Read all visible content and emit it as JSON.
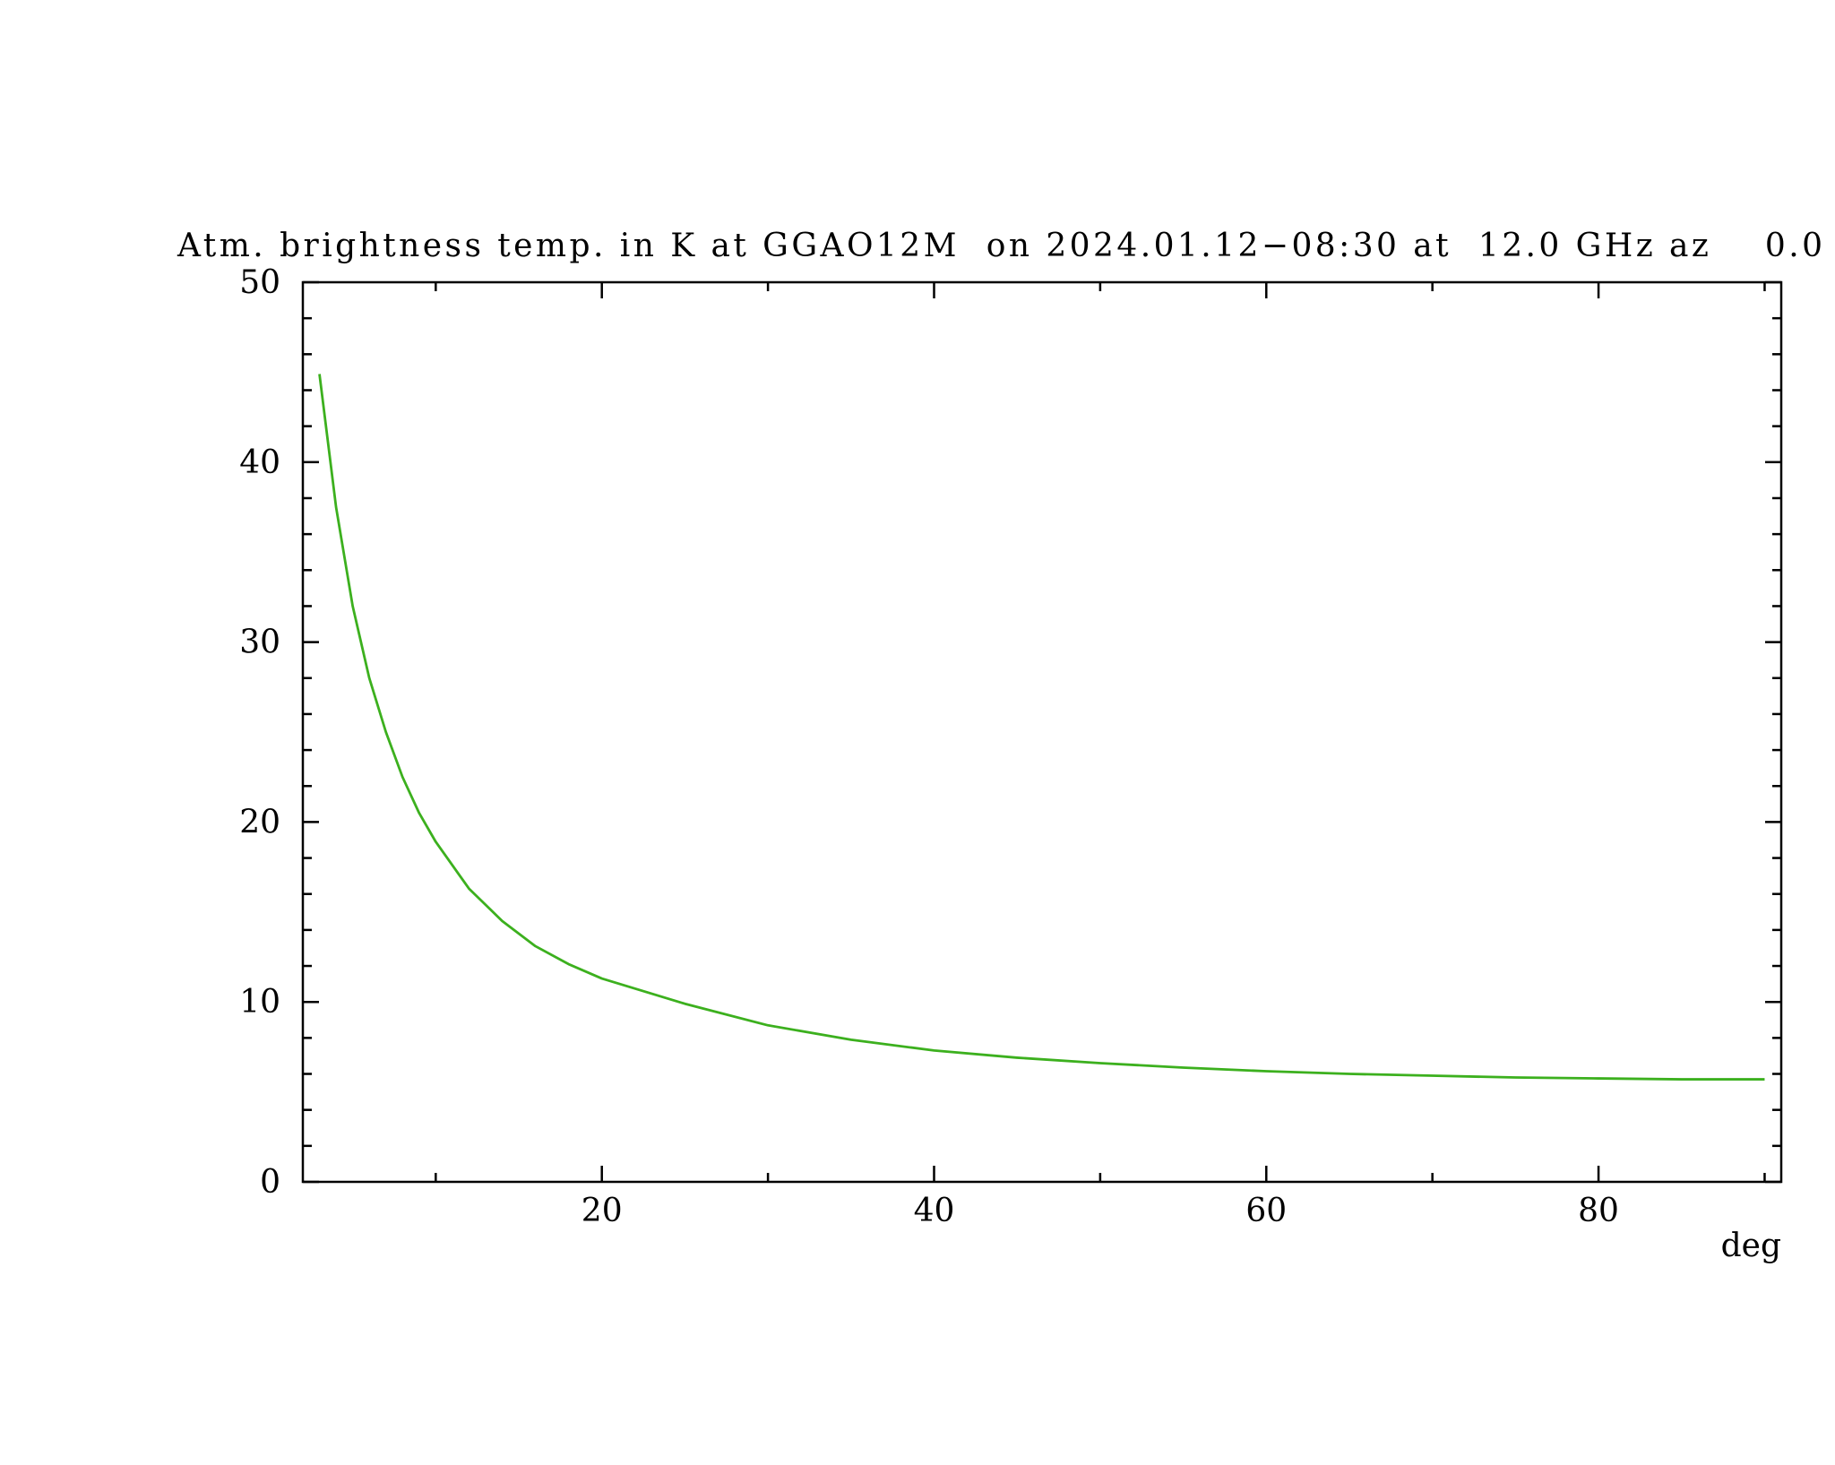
{
  "chart_data": {
    "type": "line",
    "title": "Atm. brightness temp. in K at GGAO12M  on 2024.01.12−08:30 at  12.0 GHz az    0.0",
    "x_label": "deg",
    "x": [
      3,
      4,
      5,
      6,
      7,
      8,
      9,
      10,
      12,
      14,
      16,
      18,
      20,
      25,
      30,
      35,
      40,
      45,
      50,
      55,
      60,
      65,
      70,
      75,
      80,
      85,
      90
    ],
    "series": [
      {
        "color": "#3cb01e",
        "values": [
          44.9,
          37.5,
          32,
          28,
          25,
          22.5,
          20.5,
          18.9,
          16.3,
          14.5,
          13.1,
          12.1,
          11.3,
          9.9,
          8.7,
          7.9,
          7.3,
          6.9,
          6.6,
          6.35,
          6.15,
          6.0,
          5.9,
          5.8,
          5.75,
          5.7,
          5.7
        ]
      }
    ],
    "xlim": [
      2,
      91
    ],
    "xticks": [
      20,
      40,
      60,
      80
    ],
    "xminorticks": [
      10,
      30,
      50,
      70,
      90
    ],
    "ylim": [
      0,
      50
    ],
    "yticks": [
      0,
      10,
      20,
      30,
      40,
      50
    ],
    "yminorticks": [
      2,
      4,
      6,
      8,
      12,
      14,
      16,
      18,
      22,
      24,
      26,
      28,
      32,
      34,
      36,
      38,
      42,
      44,
      46,
      48
    ],
    "grid": false
  }
}
